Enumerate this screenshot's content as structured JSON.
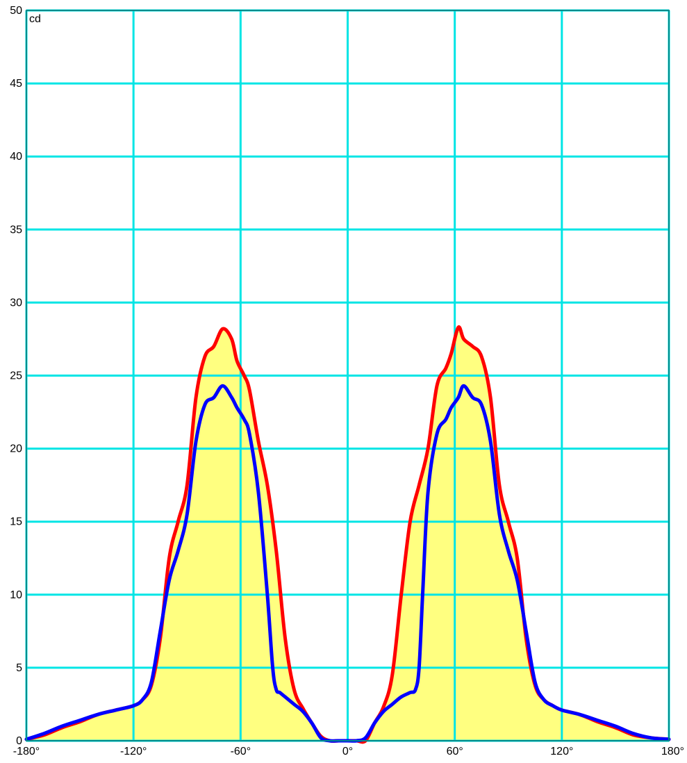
{
  "chart_data": {
    "type": "area",
    "ylabel": "cd",
    "xlim": [
      -180,
      180
    ],
    "ylim": [
      0,
      50
    ],
    "grid": true,
    "x_ticks": [
      -180,
      -120,
      -60,
      0,
      60,
      120,
      180
    ],
    "x_tick_labels": [
      "-180°",
      "-120°",
      "-60°",
      "0°",
      "60°",
      "120°",
      "180°"
    ],
    "y_ticks": [
      0,
      5,
      10,
      15,
      20,
      25,
      30,
      35,
      40,
      45,
      50
    ],
    "y_tick_labels": [
      "0",
      "5",
      "10",
      "15",
      "20",
      "25",
      "30",
      "35",
      "40",
      "45",
      "50"
    ],
    "colors": {
      "grid": "#00e5e5",
      "frame": "#008b8b",
      "fill": "#ffff80",
      "series_1": "#ff0000",
      "series_2": "#0000ff"
    },
    "series": [
      {
        "color": "#ff0000",
        "x": [
          -180,
          -170,
          -160,
          -150,
          -140,
          -130,
          -120,
          -115,
          -110,
          -105,
          -100,
          -95,
          -90,
          -85,
          -80,
          -75,
          -70,
          -65,
          -62,
          -58,
          -55,
          -50,
          -45,
          -40,
          -35,
          -30,
          -25,
          -20,
          -15,
          -10,
          -5,
          0,
          5,
          10,
          15,
          20,
          25,
          30,
          35,
          40,
          45,
          50,
          55,
          58,
          62,
          65,
          70,
          75,
          80,
          85,
          90,
          95,
          100,
          105,
          110,
          115,
          120,
          130,
          140,
          150,
          160,
          170,
          180
        ],
        "y": [
          0.1,
          0.4,
          0.9,
          1.3,
          1.8,
          2.1,
          2.4,
          2.8,
          3.8,
          7,
          12.5,
          15,
          17.5,
          23.5,
          26.3,
          27,
          28.2,
          27.5,
          26,
          25,
          24,
          20.5,
          17.5,
          13,
          7,
          3.5,
          2.2,
          1.2,
          0.3,
          0,
          0,
          0,
          0,
          0,
          1.2,
          2.3,
          4.5,
          10,
          15,
          17.5,
          20,
          24.3,
          25.5,
          26.5,
          28.3,
          27.5,
          27,
          26.3,
          23.5,
          17.5,
          15,
          12.5,
          7,
          3.8,
          2.8,
          2.4,
          2.1,
          1.8,
          1.3,
          0.9,
          0.4,
          0.2,
          0.1
        ]
      },
      {
        "color": "#0000ff",
        "x": [
          -180,
          -170,
          -160,
          -150,
          -140,
          -130,
          -120,
          -115,
          -110,
          -105,
          -100,
          -95,
          -90,
          -85,
          -80,
          -75,
          -70,
          -65,
          -62,
          -58,
          -55,
          -50,
          -45,
          -42,
          -40,
          -38,
          -35,
          -30,
          -25,
          -20,
          -15,
          -10,
          -5,
          0,
          5,
          10,
          15,
          20,
          25,
          30,
          35,
          38,
          40,
          42,
          45,
          50,
          55,
          58,
          62,
          65,
          70,
          75,
          80,
          85,
          90,
          95,
          100,
          105,
          110,
          115,
          120,
          130,
          140,
          150,
          160,
          170,
          180
        ],
        "y": [
          0.1,
          0.5,
          1,
          1.4,
          1.8,
          2.1,
          2.4,
          2.8,
          4,
          7.5,
          11,
          13,
          15.5,
          20.5,
          23,
          23.5,
          24.3,
          23.5,
          22.8,
          22,
          21,
          17,
          10,
          5,
          3.5,
          3.3,
          3,
          2.5,
          2,
          1.2,
          0.2,
          0,
          0,
          0,
          0,
          0.2,
          1.2,
          2,
          2.5,
          3,
          3.3,
          3.5,
          5,
          10,
          17,
          21,
          22,
          22.8,
          23.5,
          24.3,
          23.5,
          23,
          20.5,
          15.5,
          13,
          11,
          7.5,
          4,
          2.8,
          2.4,
          2.1,
          1.8,
          1.4,
          1,
          0.5,
          0.2,
          0.1
        ]
      }
    ]
  }
}
